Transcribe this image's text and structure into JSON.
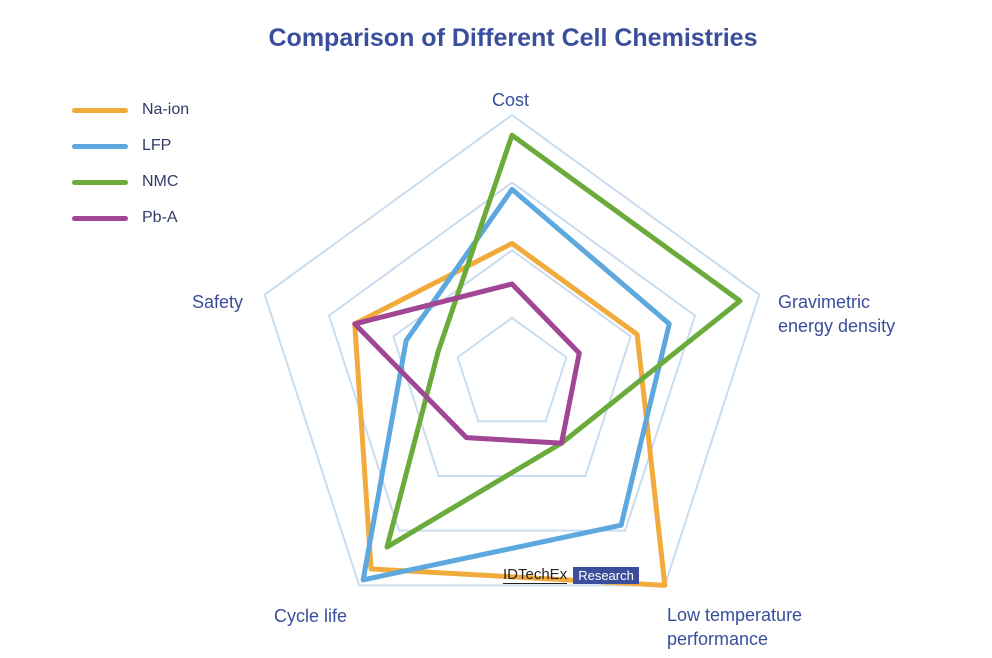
{
  "chart_data": {
    "type": "radar",
    "title": "Comparison of Different Cell Chemistries",
    "axes": [
      "Cost",
      "Gravimetric energy density",
      "Low temperature performance",
      "Cycle life",
      "Safety"
    ],
    "axis_display": {
      "cost": "Cost",
      "grav_line1": "Gravimetric",
      "grav_line2": "energy density",
      "lowtemp_line1": "Low temperature",
      "lowtemp_line2": "performance",
      "cycle": "Cycle life",
      "safety": "Safety"
    },
    "levels": 4,
    "range": [
      0,
      4
    ],
    "series": [
      {
        "name": "Na-ion",
        "color": "#f0ab3c",
        "values": [
          2.1,
          2.1,
          4.0,
          3.7,
          2.6
        ]
      },
      {
        "name": "LFP",
        "color": "#5da8de",
        "values": [
          2.9,
          2.6,
          2.9,
          3.9,
          1.8
        ]
      },
      {
        "name": "NMC",
        "color": "#6aab3c",
        "values": [
          3.7,
          3.7,
          1.4,
          3.3,
          1.3
        ]
      },
      {
        "name": "Pb-A",
        "color": "#a04694",
        "values": [
          1.5,
          1.2,
          1.4,
          1.3,
          2.6
        ]
      }
    ],
    "legend_position": "top-left"
  },
  "watermark": {
    "brand": "IDTechEx",
    "tag": "Research"
  }
}
